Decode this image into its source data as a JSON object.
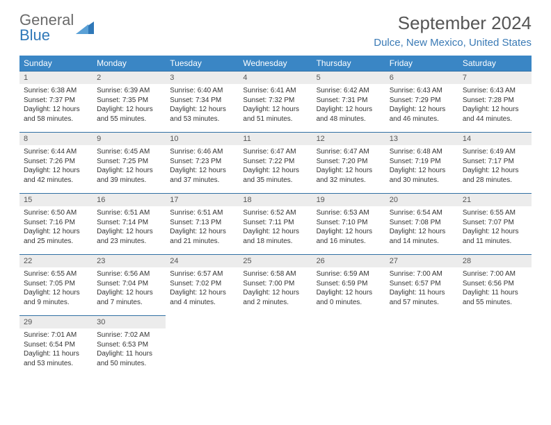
{
  "brand": {
    "name1": "General",
    "name2": "Blue"
  },
  "title": "September 2024",
  "location": "Dulce, New Mexico, United States",
  "colors": {
    "header_bg": "#3a86c5",
    "header_text": "#ffffff",
    "daynum_bg": "#ececec",
    "border": "#2f6fa3",
    "brand_blue": "#2f78b8",
    "brand_gray": "#6a6a6a",
    "location_color": "#3a7ab5"
  },
  "weekdays": [
    "Sunday",
    "Monday",
    "Tuesday",
    "Wednesday",
    "Thursday",
    "Friday",
    "Saturday"
  ],
  "days": [
    {
      "n": "1",
      "sunrise": "Sunrise: 6:38 AM",
      "sunset": "Sunset: 7:37 PM",
      "daylight": "Daylight: 12 hours and 58 minutes."
    },
    {
      "n": "2",
      "sunrise": "Sunrise: 6:39 AM",
      "sunset": "Sunset: 7:35 PM",
      "daylight": "Daylight: 12 hours and 55 minutes."
    },
    {
      "n": "3",
      "sunrise": "Sunrise: 6:40 AM",
      "sunset": "Sunset: 7:34 PM",
      "daylight": "Daylight: 12 hours and 53 minutes."
    },
    {
      "n": "4",
      "sunrise": "Sunrise: 6:41 AM",
      "sunset": "Sunset: 7:32 PM",
      "daylight": "Daylight: 12 hours and 51 minutes."
    },
    {
      "n": "5",
      "sunrise": "Sunrise: 6:42 AM",
      "sunset": "Sunset: 7:31 PM",
      "daylight": "Daylight: 12 hours and 48 minutes."
    },
    {
      "n": "6",
      "sunrise": "Sunrise: 6:43 AM",
      "sunset": "Sunset: 7:29 PM",
      "daylight": "Daylight: 12 hours and 46 minutes."
    },
    {
      "n": "7",
      "sunrise": "Sunrise: 6:43 AM",
      "sunset": "Sunset: 7:28 PM",
      "daylight": "Daylight: 12 hours and 44 minutes."
    },
    {
      "n": "8",
      "sunrise": "Sunrise: 6:44 AM",
      "sunset": "Sunset: 7:26 PM",
      "daylight": "Daylight: 12 hours and 42 minutes."
    },
    {
      "n": "9",
      "sunrise": "Sunrise: 6:45 AM",
      "sunset": "Sunset: 7:25 PM",
      "daylight": "Daylight: 12 hours and 39 minutes."
    },
    {
      "n": "10",
      "sunrise": "Sunrise: 6:46 AM",
      "sunset": "Sunset: 7:23 PM",
      "daylight": "Daylight: 12 hours and 37 minutes."
    },
    {
      "n": "11",
      "sunrise": "Sunrise: 6:47 AM",
      "sunset": "Sunset: 7:22 PM",
      "daylight": "Daylight: 12 hours and 35 minutes."
    },
    {
      "n": "12",
      "sunrise": "Sunrise: 6:47 AM",
      "sunset": "Sunset: 7:20 PM",
      "daylight": "Daylight: 12 hours and 32 minutes."
    },
    {
      "n": "13",
      "sunrise": "Sunrise: 6:48 AM",
      "sunset": "Sunset: 7:19 PM",
      "daylight": "Daylight: 12 hours and 30 minutes."
    },
    {
      "n": "14",
      "sunrise": "Sunrise: 6:49 AM",
      "sunset": "Sunset: 7:17 PM",
      "daylight": "Daylight: 12 hours and 28 minutes."
    },
    {
      "n": "15",
      "sunrise": "Sunrise: 6:50 AM",
      "sunset": "Sunset: 7:16 PM",
      "daylight": "Daylight: 12 hours and 25 minutes."
    },
    {
      "n": "16",
      "sunrise": "Sunrise: 6:51 AM",
      "sunset": "Sunset: 7:14 PM",
      "daylight": "Daylight: 12 hours and 23 minutes."
    },
    {
      "n": "17",
      "sunrise": "Sunrise: 6:51 AM",
      "sunset": "Sunset: 7:13 PM",
      "daylight": "Daylight: 12 hours and 21 minutes."
    },
    {
      "n": "18",
      "sunrise": "Sunrise: 6:52 AM",
      "sunset": "Sunset: 7:11 PM",
      "daylight": "Daylight: 12 hours and 18 minutes."
    },
    {
      "n": "19",
      "sunrise": "Sunrise: 6:53 AM",
      "sunset": "Sunset: 7:10 PM",
      "daylight": "Daylight: 12 hours and 16 minutes."
    },
    {
      "n": "20",
      "sunrise": "Sunrise: 6:54 AM",
      "sunset": "Sunset: 7:08 PM",
      "daylight": "Daylight: 12 hours and 14 minutes."
    },
    {
      "n": "21",
      "sunrise": "Sunrise: 6:55 AM",
      "sunset": "Sunset: 7:07 PM",
      "daylight": "Daylight: 12 hours and 11 minutes."
    },
    {
      "n": "22",
      "sunrise": "Sunrise: 6:55 AM",
      "sunset": "Sunset: 7:05 PM",
      "daylight": "Daylight: 12 hours and 9 minutes."
    },
    {
      "n": "23",
      "sunrise": "Sunrise: 6:56 AM",
      "sunset": "Sunset: 7:04 PM",
      "daylight": "Daylight: 12 hours and 7 minutes."
    },
    {
      "n": "24",
      "sunrise": "Sunrise: 6:57 AM",
      "sunset": "Sunset: 7:02 PM",
      "daylight": "Daylight: 12 hours and 4 minutes."
    },
    {
      "n": "25",
      "sunrise": "Sunrise: 6:58 AM",
      "sunset": "Sunset: 7:00 PM",
      "daylight": "Daylight: 12 hours and 2 minutes."
    },
    {
      "n": "26",
      "sunrise": "Sunrise: 6:59 AM",
      "sunset": "Sunset: 6:59 PM",
      "daylight": "Daylight: 12 hours and 0 minutes."
    },
    {
      "n": "27",
      "sunrise": "Sunrise: 7:00 AM",
      "sunset": "Sunset: 6:57 PM",
      "daylight": "Daylight: 11 hours and 57 minutes."
    },
    {
      "n": "28",
      "sunrise": "Sunrise: 7:00 AM",
      "sunset": "Sunset: 6:56 PM",
      "daylight": "Daylight: 11 hours and 55 minutes."
    },
    {
      "n": "29",
      "sunrise": "Sunrise: 7:01 AM",
      "sunset": "Sunset: 6:54 PM",
      "daylight": "Daylight: 11 hours and 53 minutes."
    },
    {
      "n": "30",
      "sunrise": "Sunrise: 7:02 AM",
      "sunset": "Sunset: 6:53 PM",
      "daylight": "Daylight: 11 hours and 50 minutes."
    }
  ]
}
